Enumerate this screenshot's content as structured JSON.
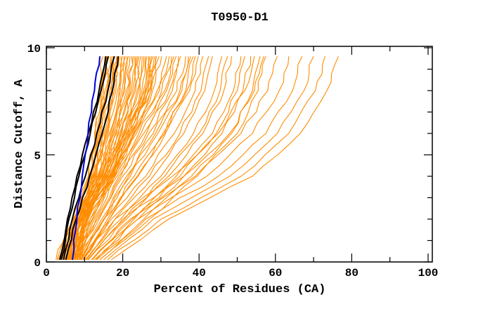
{
  "page": {
    "background_color": "#ffffff",
    "text_color": "#000000"
  },
  "chart_data": {
    "type": "line",
    "title": "T0950-D1",
    "xlabel": "Percent of Residues (CA)",
    "ylabel": "Distance Cutoff, A",
    "xlim": [
      0,
      101
    ],
    "ylim": [
      0,
      10.07
    ],
    "xticks_major": [
      0,
      20,
      40,
      60,
      80,
      100
    ],
    "xticks_minor": [
      10,
      30,
      50,
      70,
      90
    ],
    "yticks_major": [
      0,
      5,
      10
    ],
    "yticks_minor": [
      1,
      2,
      3,
      4,
      6,
      7,
      8,
      9
    ],
    "grid": false,
    "legend_position": "none",
    "frame": true,
    "colors": {
      "orange": "#ff8c00",
      "black": "#000000",
      "blue": "#0000dd"
    },
    "line_widths": {
      "orange": 1.1,
      "black": 2.0,
      "blue": 2.0
    },
    "cutoffs": [
      0.1,
      2,
      4,
      6,
      8,
      9.6
    ],
    "lines": [
      {
        "c": "orange",
        "x": [
          2.5,
          6.8,
          11.0,
          12.6,
          13.8,
          14.8
        ]
      },
      {
        "c": "orange",
        "x": [
          3.4,
          7.3,
          11.2,
          12.9,
          14.2,
          15.3
        ]
      },
      {
        "c": "orange",
        "x": [
          4.3,
          7.8,
          11.4,
          13.2,
          14.6,
          15.7
        ]
      },
      {
        "c": "orange",
        "x": [
          5.2,
          8.2,
          11.6,
          13.5,
          15.0,
          16.0
        ]
      },
      {
        "c": "orange",
        "x": [
          6.1,
          8.7,
          11.8,
          13.8,
          15.4,
          16.4
        ]
      },
      {
        "c": "orange",
        "x": [
          7.0,
          9.2,
          12.0,
          14.1,
          15.8,
          16.8
        ]
      },
      {
        "c": "orange",
        "x": [
          7.9,
          9.7,
          12.2,
          14.4,
          16.2,
          17.2
        ]
      },
      {
        "c": "orange",
        "x": [
          2.8,
          7.0,
          12.4,
          14.7,
          16.6,
          17.5
        ]
      },
      {
        "c": "orange",
        "x": [
          3.7,
          7.5,
          12.6,
          15.0,
          17.0,
          17.9
        ]
      },
      {
        "c": "orange",
        "x": [
          4.6,
          8.0,
          12.8,
          15.3,
          17.4,
          18.3
        ]
      },
      {
        "c": "orange",
        "x": [
          5.5,
          8.5,
          13.0,
          15.6,
          17.8,
          18.7
        ]
      },
      {
        "c": "orange",
        "x": [
          6.4,
          9.0,
          13.2,
          15.9,
          18.2,
          19.1
        ]
      },
      {
        "c": "orange",
        "x": [
          7.3,
          9.5,
          13.4,
          16.2,
          18.6,
          19.5
        ]
      },
      {
        "c": "orange",
        "x": [
          8.2,
          10.0,
          13.6,
          16.5,
          19.0,
          19.9
        ]
      },
      {
        "c": "orange",
        "x": [
          3.1,
          7.2,
          13.8,
          16.8,
          19.4,
          20.3
        ]
      },
      {
        "c": "orange",
        "x": [
          4.0,
          7.7,
          14.0,
          17.1,
          19.8,
          20.7
        ]
      },
      {
        "c": "orange",
        "x": [
          4.9,
          8.3,
          14.2,
          17.4,
          20.2,
          21.1
        ]
      },
      {
        "c": "orange",
        "x": [
          5.8,
          8.8,
          14.4,
          17.7,
          20.6,
          21.5
        ]
      },
      {
        "c": "orange",
        "x": [
          6.7,
          9.3,
          14.6,
          18.0,
          21.0,
          21.9
        ]
      },
      {
        "c": "orange",
        "x": [
          7.6,
          9.9,
          14.8,
          18.3,
          21.4,
          22.3
        ]
      },
      {
        "c": "orange",
        "x": [
          8.5,
          10.4,
          15.0,
          18.6,
          21.8,
          22.7
        ]
      },
      {
        "c": "orange",
        "x": [
          3.5,
          7.6,
          15.2,
          18.9,
          22.2,
          23.1
        ]
      },
      {
        "c": "orange",
        "x": [
          4.4,
          8.1,
          15.4,
          19.2,
          22.6,
          23.5
        ]
      },
      {
        "c": "orange",
        "x": [
          5.3,
          8.6,
          15.6,
          19.5,
          23.0,
          23.9
        ]
      },
      {
        "c": "orange",
        "x": [
          6.2,
          9.1,
          15.8,
          19.8,
          23.4,
          24.3
        ]
      },
      {
        "c": "orange",
        "x": [
          7.1,
          9.6,
          16.0,
          20.1,
          23.8,
          24.7
        ]
      },
      {
        "c": "orange",
        "x": [
          8.0,
          10.1,
          16.2,
          20.4,
          24.2,
          25.1
        ]
      },
      {
        "c": "orange",
        "x": [
          8.9,
          10.6,
          16.4,
          20.7,
          24.6,
          25.5
        ]
      },
      {
        "c": "orange",
        "x": [
          3.9,
          8.4,
          16.6,
          21.0,
          25.0,
          25.9
        ]
      },
      {
        "c": "orange",
        "x": [
          4.8,
          8.9,
          16.8,
          21.3,
          25.4,
          26.3
        ]
      },
      {
        "c": "orange",
        "x": [
          5.7,
          9.4,
          17.0,
          21.6,
          25.8,
          26.7
        ]
      },
      {
        "c": "orange",
        "x": [
          6.6,
          9.9,
          17.2,
          21.9,
          26.2,
          27.1
        ]
      },
      {
        "c": "orange",
        "x": [
          7.5,
          10.5,
          17.4,
          22.2,
          26.6,
          27.5
        ]
      },
      {
        "c": "orange",
        "x": [
          8.4,
          11.0,
          17.6,
          22.5,
          27.0,
          27.9
        ]
      },
      {
        "c": "orange",
        "x": [
          9.3,
          11.5,
          17.8,
          22.8,
          27.4,
          28.3
        ]
      },
      {
        "c": "orange",
        "x": [
          5.0,
          9.0,
          18.0,
          23.1,
          27.8,
          28.7
        ]
      },
      {
        "c": "orange",
        "x": [
          5.5,
          10.0,
          15.0,
          20.5,
          26.0,
          28.8
        ]
      },
      {
        "c": "orange",
        "x": [
          6.0,
          10.8,
          16.0,
          21.8,
          27.5,
          30.2
        ]
      },
      {
        "c": "orange",
        "x": [
          6.5,
          11.5,
          17.0,
          23.0,
          29.0,
          31.5
        ]
      },
      {
        "c": "orange",
        "x": [
          7.0,
          12.2,
          18.0,
          24.2,
          30.2,
          32.8
        ]
      },
      {
        "c": "orange",
        "x": [
          7.5,
          13.0,
          19.0,
          25.5,
          31.5,
          34.0
        ]
      },
      {
        "c": "orange",
        "x": [
          8.0,
          13.8,
          20.0,
          26.8,
          33.0,
          35.2
        ]
      },
      {
        "c": "orange",
        "x": [
          8.5,
          14.5,
          21.0,
          28.0,
          34.2,
          36.5
        ]
      },
      {
        "c": "orange",
        "x": [
          9.0,
          15.2,
          22.0,
          29.2,
          35.5,
          37.8
        ]
      },
      {
        "c": "orange",
        "x": [
          9.5,
          16.0,
          23.0,
          30.5,
          36.8,
          39.0
        ]
      },
      {
        "c": "orange",
        "x": [
          6.8,
          12.0,
          17.5,
          23.6,
          29.6,
          32.2
        ]
      },
      {
        "c": "orange",
        "x": [
          7.8,
          13.4,
          19.5,
          26.2,
          32.2,
          34.6
        ]
      },
      {
        "c": "orange",
        "x": [
          8.8,
          15.0,
          21.5,
          28.6,
          35.0,
          37.2
        ]
      },
      {
        "c": "orange",
        "x": [
          5.8,
          10.4,
          15.5,
          21.2,
          26.8,
          29.5
        ]
      },
      {
        "c": "orange",
        "x": [
          7.2,
          12.6,
          18.5,
          24.8,
          31.0,
          33.4
        ]
      },
      {
        "c": "orange",
        "x": [
          9.8,
          16.5,
          23.8,
          31.2,
          37.5,
          39.8
        ]
      },
      {
        "c": "orange",
        "x": [
          8.0,
          15.0,
          24.0,
          31.0,
          36.5,
          38.5
        ]
      },
      {
        "c": "orange",
        "x": [
          8.8,
          16.5,
          26.0,
          33.5,
          39.0,
          41.0
        ]
      },
      {
        "c": "orange",
        "x": [
          9.5,
          18.0,
          28.0,
          36.0,
          41.5,
          43.5
        ]
      },
      {
        "c": "orange",
        "x": [
          10.2,
          19.5,
          30.0,
          38.5,
          44.0,
          46.0
        ]
      },
      {
        "c": "orange",
        "x": [
          11.0,
          21.0,
          32.0,
          41.0,
          46.5,
          48.5
        ]
      },
      {
        "c": "orange",
        "x": [
          11.8,
          22.5,
          34.0,
          43.5,
          49.0,
          51.0
        ]
      },
      {
        "c": "orange",
        "x": [
          12.5,
          24.0,
          36.0,
          46.0,
          51.5,
          53.5
        ]
      },
      {
        "c": "orange",
        "x": [
          13.2,
          25.5,
          38.0,
          48.5,
          54.0,
          56.0
        ]
      },
      {
        "c": "orange",
        "x": [
          9.0,
          17.0,
          27.0,
          35.0,
          40.5,
          42.5
        ]
      },
      {
        "c": "orange",
        "x": [
          10.8,
          20.5,
          31.0,
          40.0,
          45.5,
          47.5
        ]
      },
      {
        "c": "orange",
        "x": [
          12.0,
          23.0,
          35.0,
          44.5,
          50.0,
          52.0
        ]
      },
      {
        "c": "orange",
        "x": [
          14.0,
          27.0,
          39.5,
          50.0,
          55.5,
          57.5
        ]
      },
      {
        "c": "orange",
        "x": [
          11.0,
          20.0,
          36.0,
          48.0,
          54.5,
          57.0
        ]
      },
      {
        "c": "orange",
        "x": [
          12.0,
          22.0,
          39.0,
          51.0,
          58.0,
          60.5
        ]
      },
      {
        "c": "orange",
        "x": [
          13.0,
          24.0,
          42.0,
          54.0,
          61.0,
          63.5
        ]
      },
      {
        "c": "orange",
        "x": [
          14.0,
          26.0,
          45.0,
          57.5,
          64.5,
          67.0
        ]
      },
      {
        "c": "orange",
        "x": [
          15.0,
          28.0,
          48.0,
          60.5,
          67.5,
          70.0
        ]
      },
      {
        "c": "orange",
        "x": [
          16.0,
          30.0,
          51.0,
          63.5,
          70.5,
          73.0
        ]
      },
      {
        "c": "orange",
        "x": [
          17.0,
          32.0,
          54.0,
          66.5,
          73.5,
          76.5
        ]
      },
      {
        "c": "orange",
        "x": [
          10.5,
          18.0,
          33.0,
          45.0,
          52.0,
          54.5
        ]
      },
      {
        "c": "black",
        "x": [
          3.5,
          5.5,
          8.0,
          11.0,
          13.8,
          15.6
        ]
      },
      {
        "c": "black",
        "x": [
          3.9,
          5.9,
          8.5,
          11.5,
          14.3,
          16.2
        ]
      },
      {
        "c": "black",
        "x": [
          4.5,
          6.8,
          10.2,
          13.2,
          16.1,
          17.8
        ]
      },
      {
        "c": "black",
        "x": [
          5.1,
          7.8,
          11.3,
          14.6,
          17.3,
          18.8
        ]
      },
      {
        "c": "blue",
        "x": [
          6.8,
          8.0,
          9.4,
          10.9,
          12.6,
          14.0
        ]
      }
    ]
  }
}
